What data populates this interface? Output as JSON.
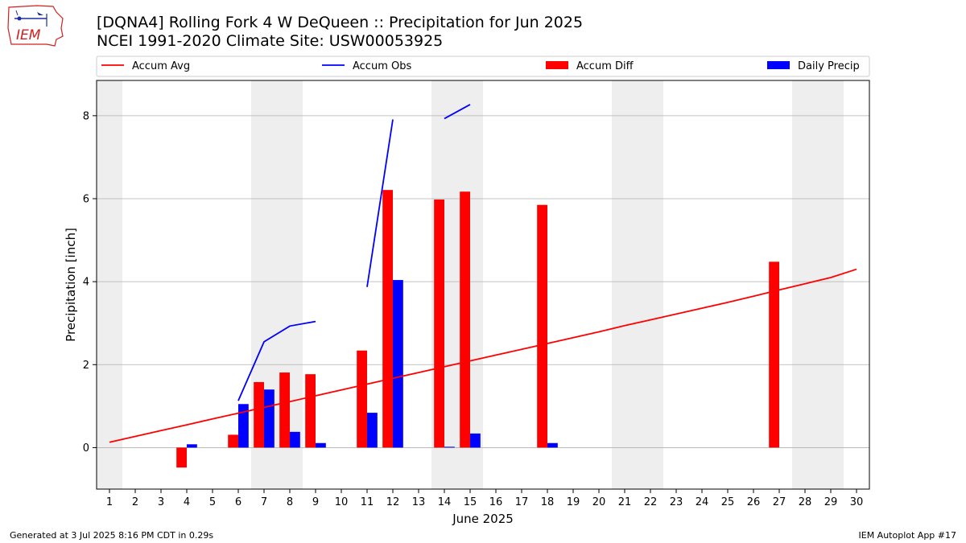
{
  "logo": {
    "text": "IEM"
  },
  "header": {
    "title": "[DQNA4] Rolling Fork 4 W DeQueen :: Precipitation for Jun 2025",
    "subtitle": "NCEI 1991-2020 Climate Site: USW00053925"
  },
  "footer": {
    "left": "Generated at 3 Jul 2025 8:16 PM CDT in 0.29s",
    "right": "IEM Autoplot App #17"
  },
  "colors": {
    "avg": "#ff0000",
    "obs": "#0000ff",
    "diff": "#ff0000",
    "daily": "#0000ff",
    "weekend": "#eeeeee",
    "grid": "#b0b0b0"
  },
  "chart_data": {
    "type": "bar",
    "xlabel": "June 2025",
    "ylabel": "Precipitation [inch]",
    "xlim": [
      0.5,
      30.5
    ],
    "ylim": [
      -1.0,
      8.85
    ],
    "yticks": [
      0,
      2,
      4,
      6,
      8
    ],
    "x": [
      1,
      2,
      3,
      4,
      5,
      6,
      7,
      8,
      9,
      10,
      11,
      12,
      13,
      14,
      15,
      16,
      17,
      18,
      19,
      20,
      21,
      22,
      23,
      24,
      25,
      26,
      27,
      28,
      29,
      30
    ],
    "grid": "horizontal",
    "legend_position": "top",
    "shaded_days": [
      1,
      7,
      8,
      14,
      15,
      21,
      22,
      28,
      29
    ],
    "series": [
      {
        "name": "Accum Avg",
        "kind": "line",
        "values": [
          0.13,
          0.27,
          0.41,
          0.55,
          0.69,
          0.83,
          0.97,
          1.11,
          1.25,
          1.39,
          1.53,
          1.67,
          1.81,
          1.95,
          2.09,
          2.23,
          2.37,
          2.51,
          2.65,
          2.79,
          2.94,
          3.08,
          3.22,
          3.36,
          3.5,
          3.65,
          3.8,
          3.95,
          4.1,
          4.3
        ]
      },
      {
        "name": "Accum Obs",
        "kind": "line",
        "values": [
          null,
          null,
          null,
          null,
          null,
          1.13,
          2.55,
          2.93,
          3.04,
          null,
          3.87,
          7.91,
          null,
          7.93,
          8.27,
          null,
          null,
          null,
          null,
          null,
          null,
          null,
          null,
          null,
          null,
          null,
          null,
          null,
          null,
          null
        ]
      },
      {
        "name": "Accum Diff",
        "kind": "bar",
        "values": [
          null,
          null,
          null,
          -0.48,
          null,
          0.31,
          1.58,
          1.81,
          1.77,
          null,
          2.34,
          6.21,
          null,
          5.98,
          6.17,
          null,
          null,
          5.85,
          null,
          null,
          null,
          null,
          null,
          null,
          null,
          null,
          4.48,
          null,
          null,
          null
        ]
      },
      {
        "name": "Daily Precip",
        "kind": "bar",
        "values": [
          null,
          null,
          null,
          0.08,
          null,
          1.05,
          1.4,
          0.38,
          0.11,
          null,
          0.84,
          4.04,
          null,
          0.02,
          0.34,
          null,
          null,
          0.11,
          null,
          null,
          null,
          null,
          null,
          null,
          null,
          null,
          null,
          null,
          null,
          null
        ]
      }
    ]
  }
}
